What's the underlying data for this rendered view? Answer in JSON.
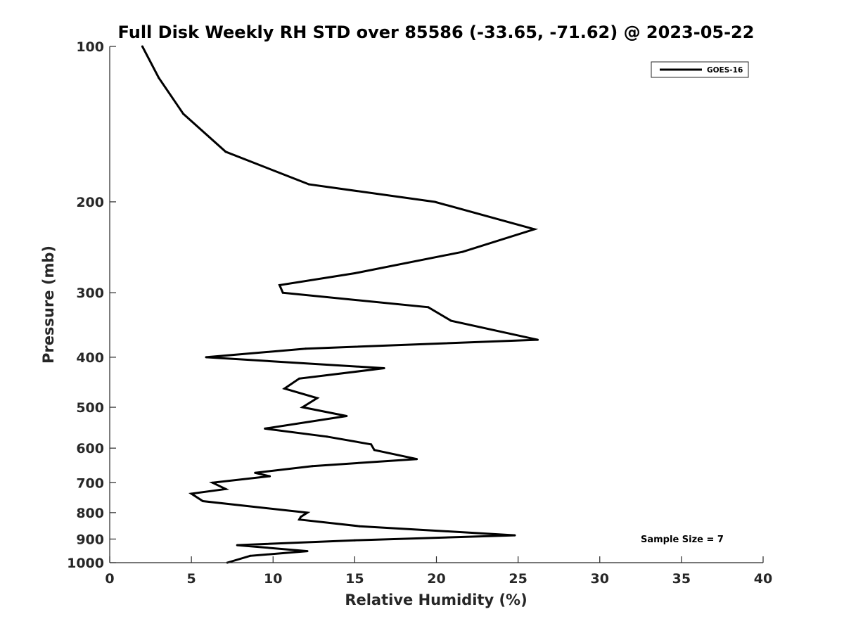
{
  "chart_data": {
    "type": "line",
    "title": "Full Disk Weekly RH STD over 85586 (-33.65, -71.62) @ 2023-05-22",
    "xlabel": "Relative Humidity (%)",
    "ylabel": "Pressure (mb)",
    "xlim": [
      0,
      40
    ],
    "ylim": [
      100,
      1000
    ],
    "y_scale": "log",
    "y_reversed": true,
    "grid": false,
    "x_ticks": [
      0,
      5,
      10,
      15,
      20,
      25,
      30,
      35,
      40
    ],
    "x_tick_labels": [
      "0",
      "5",
      "10",
      "15",
      "20",
      "25",
      "30",
      "35",
      "40"
    ],
    "y_ticks": [
      100,
      200,
      300,
      400,
      500,
      600,
      700,
      800,
      900,
      1000
    ],
    "y_tick_labels": [
      "100",
      "200",
      "300",
      "400",
      "500",
      "600",
      "700",
      "800",
      "900",
      "1000"
    ],
    "legend": {
      "position": "top-right",
      "entries": [
        "GOES-16"
      ]
    },
    "annotation": "Sample Size = 7",
    "series": [
      {
        "name": "GOES-16",
        "color": "#000000",
        "points": [
          [
            2.0,
            100
          ],
          [
            3.0,
            115
          ],
          [
            4.5,
            135
          ],
          [
            7.1,
            160
          ],
          [
            12.2,
            185
          ],
          [
            19.9,
            200
          ],
          [
            26.0,
            226
          ],
          [
            21.6,
            250
          ],
          [
            15.0,
            275
          ],
          [
            10.4,
            290
          ],
          [
            10.6,
            300
          ],
          [
            19.5,
            320
          ],
          [
            20.9,
            340
          ],
          [
            26.2,
            370
          ],
          [
            12.0,
            385
          ],
          [
            5.9,
            400
          ],
          [
            16.8,
            420
          ],
          [
            11.6,
            440
          ],
          [
            10.7,
            460
          ],
          [
            12.7,
            480
          ],
          [
            11.8,
            500
          ],
          [
            14.5,
            520
          ],
          [
            9.5,
            550
          ],
          [
            13.3,
            570
          ],
          [
            16.0,
            590
          ],
          [
            16.2,
            605
          ],
          [
            18.8,
            630
          ],
          [
            12.4,
            650
          ],
          [
            8.9,
            670
          ],
          [
            9.8,
            680
          ],
          [
            6.3,
            700
          ],
          [
            7.1,
            720
          ],
          [
            5.0,
            735
          ],
          [
            5.7,
            760
          ],
          [
            12.1,
            800
          ],
          [
            11.7,
            815
          ],
          [
            11.6,
            825
          ],
          [
            15.3,
            850
          ],
          [
            24.8,
            885
          ],
          [
            15.0,
            905
          ],
          [
            7.8,
            925
          ],
          [
            12.1,
            950
          ],
          [
            8.6,
            970
          ],
          [
            7.2,
            1000
          ]
        ]
      }
    ]
  }
}
